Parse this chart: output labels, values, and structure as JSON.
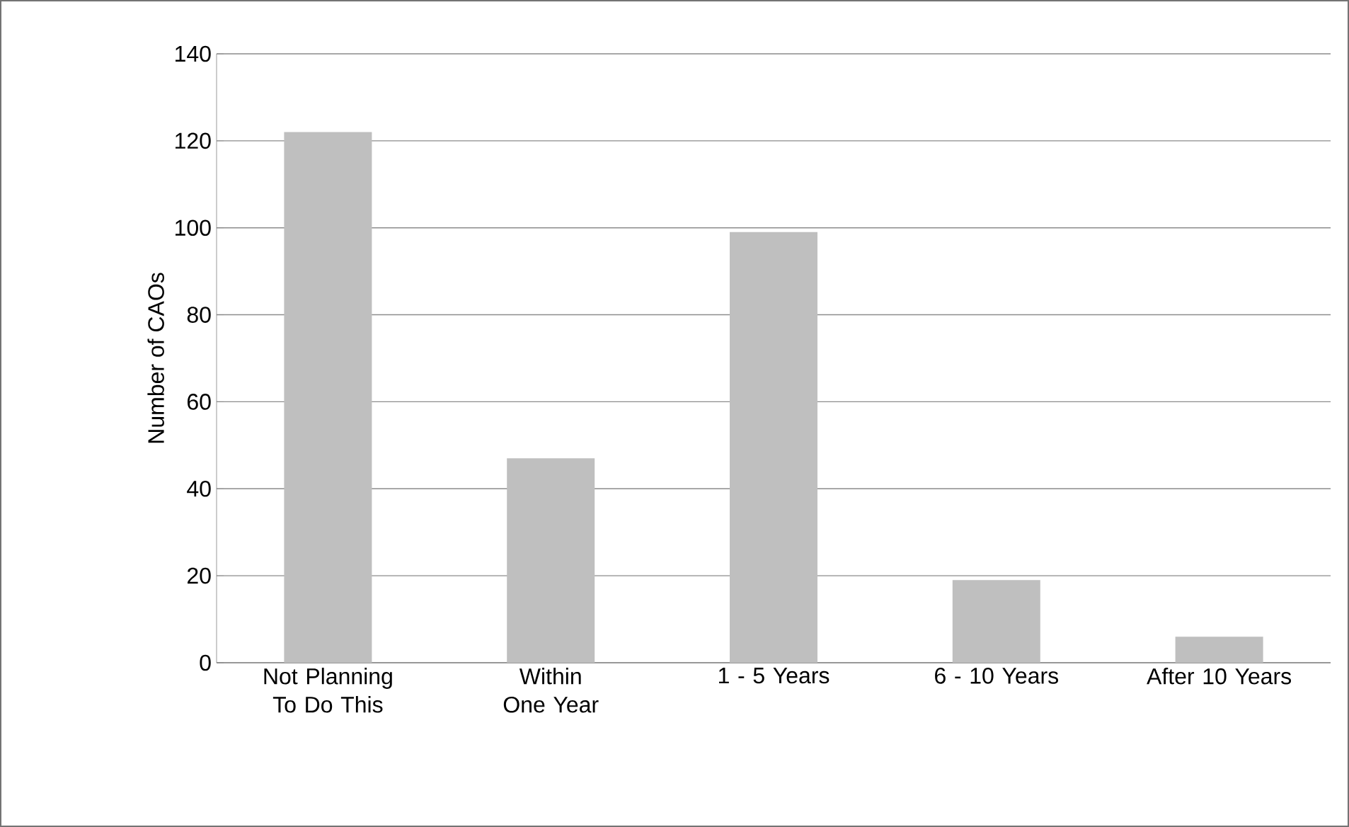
{
  "chart_data": {
    "type": "bar",
    "ylabel": "Number of CAOs",
    "categories": [
      "Not Planning To Do This",
      "Within One Year",
      "1 - 5 Years",
      "6 - 10 Years",
      "After 10 Years"
    ],
    "values": [
      122,
      47,
      99,
      19,
      6
    ],
    "color": "#bfbfbf",
    "ylim": [
      0,
      140
    ],
    "yticks": [
      0,
      20,
      40,
      60,
      80,
      100,
      120,
      140
    ],
    "grid": "y"
  }
}
